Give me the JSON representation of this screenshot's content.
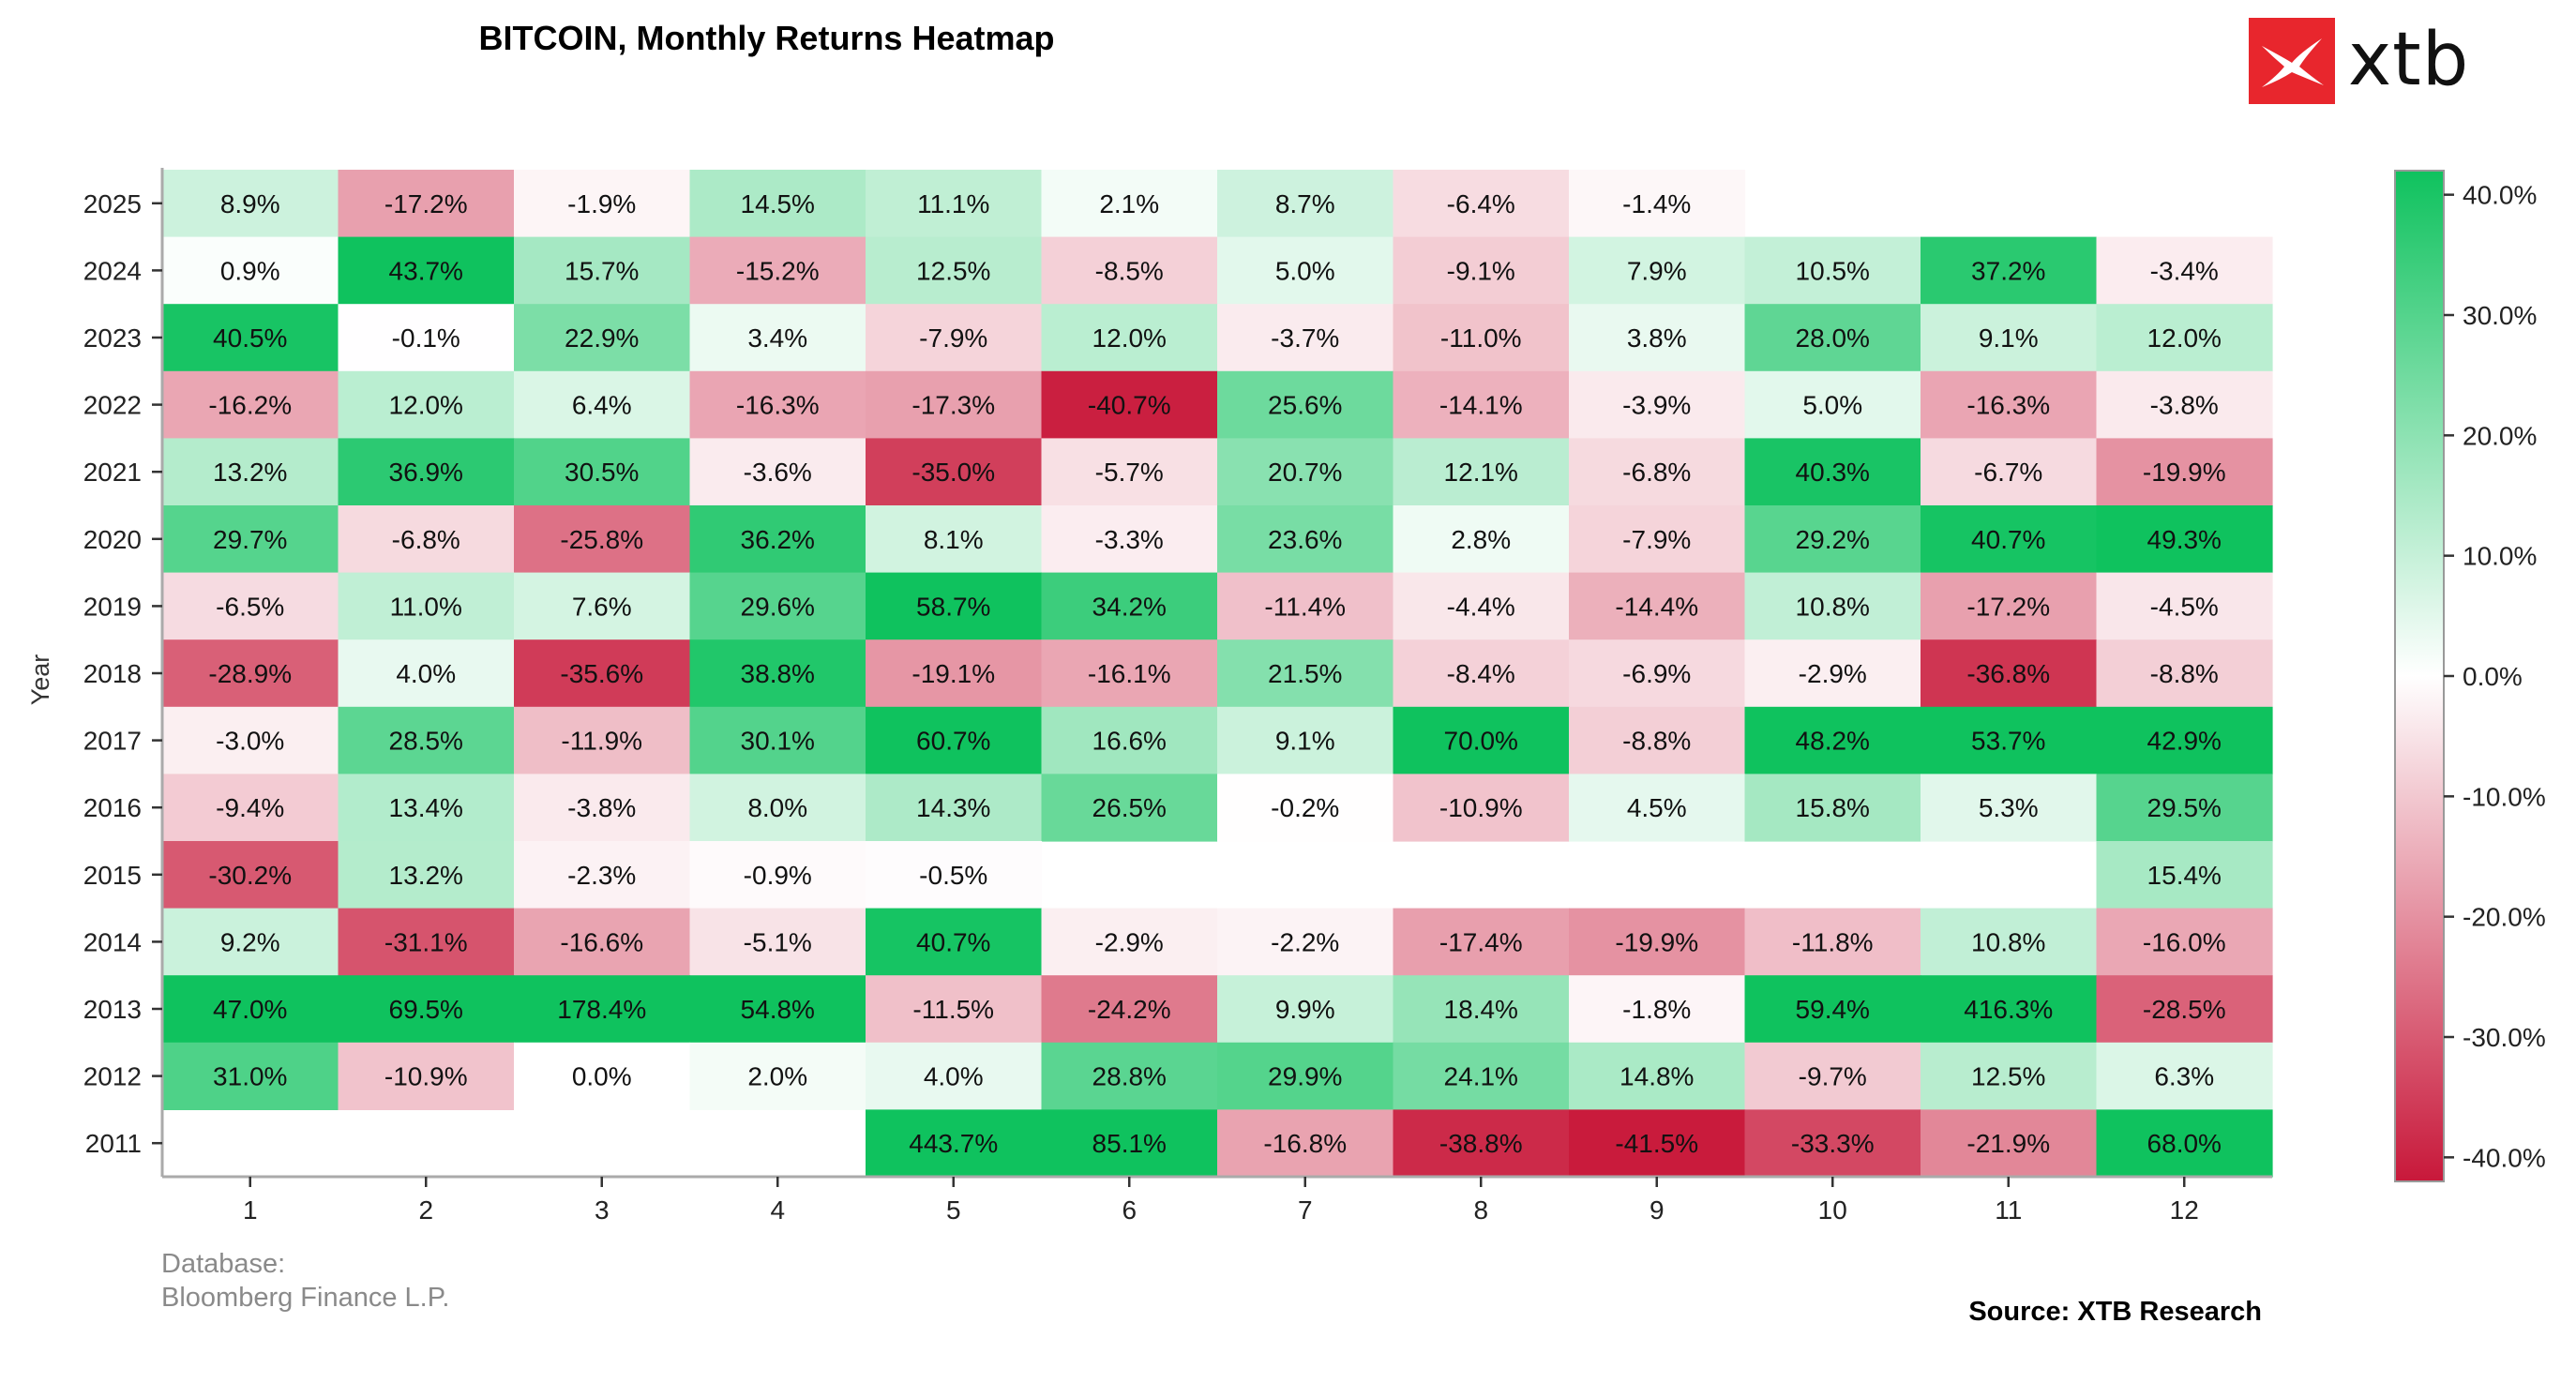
{
  "title": "BITCOIN, Monthly Returns Heatmap",
  "logo": {
    "text": "xtb",
    "brand_color": "#e8262d"
  },
  "footer": {
    "database_label": "Database:",
    "database_value": "Bloomberg Finance L.P.",
    "source": "Source: XTB Research"
  },
  "colors": {
    "positive": "#0fc25e",
    "neutral": "#ffffff",
    "negative": "#c8183a"
  },
  "chart_data": {
    "type": "heatmap",
    "title": "BITCOIN, Monthly Returns Heatmap",
    "xlabel": "",
    "ylabel": "Year",
    "x": [
      "1",
      "2",
      "3",
      "4",
      "5",
      "6",
      "7",
      "8",
      "9",
      "10",
      "11",
      "12"
    ],
    "y": [
      "2025",
      "2024",
      "2023",
      "2022",
      "2021",
      "2020",
      "2019",
      "2018",
      "2017",
      "2016",
      "2015",
      "2014",
      "2013",
      "2012",
      "2011"
    ],
    "values": [
      [
        8.9,
        -17.2,
        -1.9,
        14.5,
        11.1,
        2.1,
        8.7,
        -6.4,
        -1.4,
        null,
        null,
        null
      ],
      [
        0.9,
        43.7,
        15.7,
        -15.2,
        12.5,
        -8.5,
        5.0,
        -9.1,
        7.9,
        10.5,
        37.2,
        -3.4
      ],
      [
        40.5,
        -0.1,
        22.9,
        3.4,
        -7.9,
        12.0,
        -3.7,
        -11.0,
        3.8,
        28.0,
        9.1,
        12.0
      ],
      [
        -16.2,
        12.0,
        6.4,
        -16.3,
        -17.3,
        -40.7,
        25.6,
        -14.1,
        -3.9,
        5.0,
        -16.3,
        -3.8
      ],
      [
        13.2,
        36.9,
        30.5,
        -3.6,
        -35.0,
        -5.7,
        20.7,
        12.1,
        -6.8,
        40.3,
        -6.7,
        -19.9
      ],
      [
        29.7,
        -6.8,
        -25.8,
        36.2,
        8.1,
        -3.3,
        23.6,
        2.8,
        -7.9,
        29.2,
        40.7,
        49.3
      ],
      [
        -6.5,
        11.0,
        7.6,
        29.6,
        58.7,
        34.2,
        -11.4,
        -4.4,
        -14.4,
        10.8,
        -17.2,
        -4.5
      ],
      [
        -28.9,
        4.0,
        -35.6,
        38.8,
        -19.1,
        -16.1,
        21.5,
        -8.4,
        -6.9,
        -2.9,
        -36.8,
        -8.8
      ],
      [
        -3.0,
        28.5,
        -11.9,
        30.1,
        60.7,
        16.6,
        9.1,
        70.0,
        -8.8,
        48.2,
        53.7,
        42.9
      ],
      [
        -9.4,
        13.4,
        -3.8,
        8.0,
        14.3,
        26.5,
        -0.2,
        -10.9,
        4.5,
        15.8,
        5.3,
        29.5
      ],
      [
        -30.2,
        13.2,
        -2.3,
        -0.9,
        -0.5,
        null,
        null,
        null,
        null,
        null,
        null,
        15.4
      ],
      [
        9.2,
        -31.1,
        -16.6,
        -5.1,
        40.7,
        -2.9,
        -2.2,
        -17.4,
        -19.9,
        -11.8,
        10.8,
        -16.0
      ],
      [
        47.0,
        69.5,
        178.4,
        54.8,
        -11.5,
        -24.2,
        9.9,
        18.4,
        -1.8,
        59.4,
        416.3,
        -28.5
      ],
      [
        31.0,
        -10.9,
        0.0,
        2.0,
        4.0,
        28.8,
        29.9,
        24.1,
        14.8,
        -9.7,
        12.5,
        6.3
      ],
      [
        null,
        null,
        null,
        null,
        443.7,
        85.1,
        -16.8,
        -38.8,
        -41.5,
        -33.3,
        -21.9,
        68.0
      ]
    ],
    "value_format": "{v}%",
    "colorbar": {
      "range": [
        -42,
        42
      ],
      "ticks": [
        40,
        30,
        20,
        10,
        0,
        -10,
        -20,
        -30,
        -40
      ],
      "tick_labels": [
        "40.0%",
        "30.0%",
        "20.0%",
        "10.0%",
        "0.0%",
        "-10.0%",
        "-20.0%",
        "-30.0%",
        "-40.0%"
      ]
    }
  }
}
